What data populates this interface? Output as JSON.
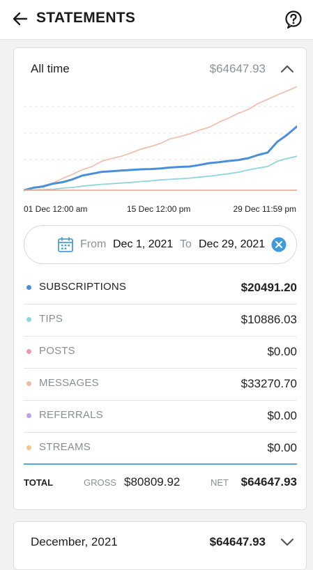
{
  "header": {
    "title": "STATEMENTS",
    "back_icon": "arrow-left-icon",
    "help_icon": "help-circle-icon"
  },
  "summary": {
    "period_label": "All time",
    "amount": "$64647.93",
    "chevron_icon": "chevron-up-icon"
  },
  "chart_data": {
    "type": "line",
    "x_tick_labels": [
      "01 Dec 12:00 am",
      "15 Dec 12:00 pm",
      "29 Dec 11:59 pm"
    ],
    "x_range": [
      1,
      29
    ],
    "y_range": [
      0,
      34000
    ],
    "grid": true,
    "series": [
      {
        "key": "messages",
        "color": "#efc1b0",
        "x": [
          1,
          2,
          3,
          4,
          5,
          6,
          7,
          8,
          9,
          10,
          11,
          12,
          13,
          14,
          15,
          16,
          17,
          18,
          19,
          20,
          21,
          22,
          23,
          24,
          25,
          26,
          27,
          28,
          29
        ],
        "values": [
          0,
          700,
          1500,
          2300,
          3800,
          5100,
          6600,
          7600,
          9300,
          10200,
          10900,
          12000,
          13200,
          14000,
          15000,
          16500,
          17200,
          18100,
          19300,
          20200,
          21800,
          23200,
          24700,
          25900,
          27800,
          29200,
          30600,
          31900,
          33270.7
        ]
      },
      {
        "key": "subscriptions",
        "color": "#4a8fdc",
        "x": [
          1,
          2,
          3,
          4,
          5,
          6,
          7,
          8,
          9,
          10,
          11,
          12,
          13,
          14,
          15,
          16,
          17,
          18,
          19,
          20,
          21,
          22,
          23,
          24,
          25,
          26,
          27,
          28,
          29
        ],
        "values": [
          0,
          800,
          1200,
          2100,
          2600,
          3500,
          4700,
          5300,
          5900,
          6100,
          6300,
          6500,
          6700,
          6800,
          7000,
          7300,
          7500,
          7600,
          8100,
          8700,
          9000,
          9400,
          9700,
          10300,
          11300,
          12100,
          15600,
          17800,
          20491.2
        ]
      },
      {
        "key": "tips",
        "color": "#8fd5e0",
        "x": [
          1,
          2,
          3,
          4,
          5,
          6,
          7,
          8,
          9,
          10,
          11,
          12,
          13,
          14,
          15,
          16,
          17,
          18,
          19,
          20,
          21,
          22,
          23,
          24,
          25,
          26,
          27,
          28,
          29
        ],
        "values": [
          0,
          100,
          200,
          300,
          700,
          900,
          1300,
          1600,
          1900,
          2100,
          2300,
          2500,
          2800,
          3000,
          3300,
          3500,
          3700,
          3900,
          4200,
          4500,
          4900,
          5300,
          5800,
          6500,
          7100,
          7600,
          9300,
          10200,
          10886.03
        ]
      },
      {
        "key": "posts",
        "color": "#f0a99b",
        "x": [
          1,
          29
        ],
        "values": [
          0,
          0
        ]
      }
    ]
  },
  "date_range": {
    "from_label": "From",
    "from_value": "Dec 1, 2021",
    "to_label": "To",
    "to_value": "Dec 29, 2021",
    "calendar_icon": "calendar-icon",
    "clear_icon": "close-circle-icon"
  },
  "categories": [
    {
      "label": "SUBSCRIPTIONS",
      "value": "$20491.20",
      "color": "#4a8fdc"
    },
    {
      "label": "TIPS",
      "value": "$10886.03",
      "color": "#8fd5e0"
    },
    {
      "label": "POSTS",
      "value": "$0.00",
      "color": "#ec97b2"
    },
    {
      "label": "MESSAGES",
      "value": "$33270.70",
      "color": "#efbca7"
    },
    {
      "label": "REFERRALS",
      "value": "$0.00",
      "color": "#b8a5df"
    },
    {
      "label": "STREAMS",
      "value": "$0.00",
      "color": "#f1c88b"
    }
  ],
  "totals": {
    "label": "TOTAL",
    "gross_label": "GROSS",
    "gross_value": "$80809.92",
    "net_label": "NET",
    "net_value": "$64647.93"
  },
  "month_card": {
    "label": "December, 2021",
    "amount": "$64647.93",
    "chevron_icon": "chevron-down-icon"
  }
}
